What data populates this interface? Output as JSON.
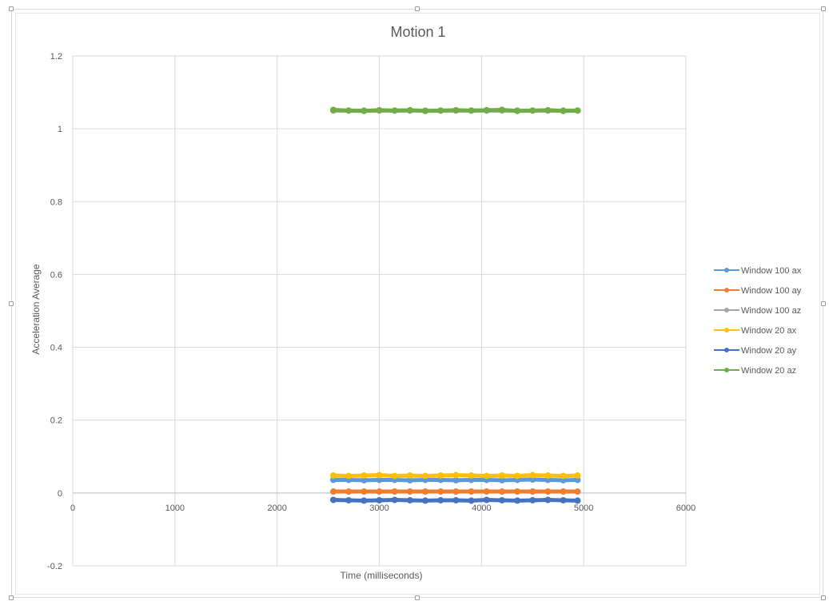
{
  "chart_data": {
    "type": "scatter",
    "title": "Motion 1",
    "xlabel": "Time (milliseconds)",
    "ylabel": "Acceleration Average",
    "xlim": [
      0,
      6000
    ],
    "ylim": [
      -0.2,
      1.2
    ],
    "x_ticks": [
      0,
      1000,
      2000,
      3000,
      4000,
      5000,
      6000
    ],
    "y_ticks": [
      -0.2,
      0,
      0.2,
      0.4,
      0.6,
      0.8,
      1,
      1.2
    ],
    "y_tick_labels": [
      "-0.2",
      "0",
      "0.2",
      "0.4",
      "0.6",
      "0.8",
      "1",
      "1.2"
    ],
    "grid": true,
    "legend_position": "right",
    "series": [
      {
        "name": "Window 100 ax",
        "color": "#5b9bd5",
        "x": [
          2550,
          2700,
          2850,
          3000,
          3150,
          3300,
          3450,
          3600,
          3750,
          3900,
          4050,
          4200,
          4350,
          4500,
          4650,
          4800,
          4940
        ],
        "y": [
          0.036,
          0.036,
          0.035,
          0.036,
          0.036,
          0.035,
          0.036,
          0.036,
          0.035,
          0.036,
          0.036,
          0.035,
          0.036,
          0.037,
          0.036,
          0.035,
          0.036
        ]
      },
      {
        "name": "Window 100 ay",
        "color": "#ed7d31",
        "x": [
          2550,
          2700,
          2850,
          3000,
          3150,
          3300,
          3450,
          3600,
          3750,
          3900,
          4050,
          4200,
          4350,
          4500,
          4650,
          4800,
          4940
        ],
        "y": [
          0.004,
          0.004,
          0.004,
          0.004,
          0.004,
          0.004,
          0.004,
          0.004,
          0.004,
          0.004,
          0.004,
          0.004,
          0.004,
          0.004,
          0.004,
          0.004,
          0.004
        ]
      },
      {
        "name": "Window 100 az",
        "color": "#a5a5a5",
        "x": [
          2550,
          2700,
          2850,
          3000,
          3150,
          3300,
          3450,
          3600,
          3750,
          3900,
          4050,
          4200,
          4350,
          4500,
          4650,
          4800,
          4940
        ],
        "y": [
          1.05,
          1.05,
          1.05,
          1.05,
          1.05,
          1.05,
          1.05,
          1.05,
          1.05,
          1.05,
          1.05,
          1.05,
          1.05,
          1.05,
          1.05,
          1.05,
          1.05
        ]
      },
      {
        "name": "Window 20 ax",
        "color": "#ffc000",
        "x": [
          2550,
          2700,
          2850,
          3000,
          3150,
          3300,
          3450,
          3600,
          3750,
          3900,
          4050,
          4200,
          4350,
          4500,
          4650,
          4800,
          4940
        ],
        "y": [
          0.048,
          0.047,
          0.048,
          0.049,
          0.047,
          0.048,
          0.047,
          0.048,
          0.049,
          0.048,
          0.047,
          0.048,
          0.047,
          0.049,
          0.048,
          0.047,
          0.048
        ]
      },
      {
        "name": "Window 20 ay",
        "color": "#4472c4",
        "x": [
          2550,
          2700,
          2850,
          3000,
          3150,
          3300,
          3450,
          3600,
          3750,
          3900,
          4050,
          4200,
          4350,
          4500,
          4650,
          4800,
          4940
        ],
        "y": [
          -0.019,
          -0.02,
          -0.021,
          -0.02,
          -0.019,
          -0.02,
          -0.021,
          -0.02,
          -0.02,
          -0.021,
          -0.019,
          -0.02,
          -0.021,
          -0.02,
          -0.019,
          -0.02,
          -0.021
        ]
      },
      {
        "name": "Window 20 az",
        "color": "#70ad47",
        "x": [
          2550,
          2700,
          2850,
          3000,
          3150,
          3300,
          3450,
          3600,
          3750,
          3900,
          4050,
          4200,
          4350,
          4500,
          4650,
          4800,
          4940
        ],
        "y": [
          1.052,
          1.05,
          1.049,
          1.051,
          1.05,
          1.051,
          1.049,
          1.05,
          1.051,
          1.05,
          1.051,
          1.052,
          1.049,
          1.05,
          1.051,
          1.049,
          1.05
        ]
      }
    ]
  }
}
